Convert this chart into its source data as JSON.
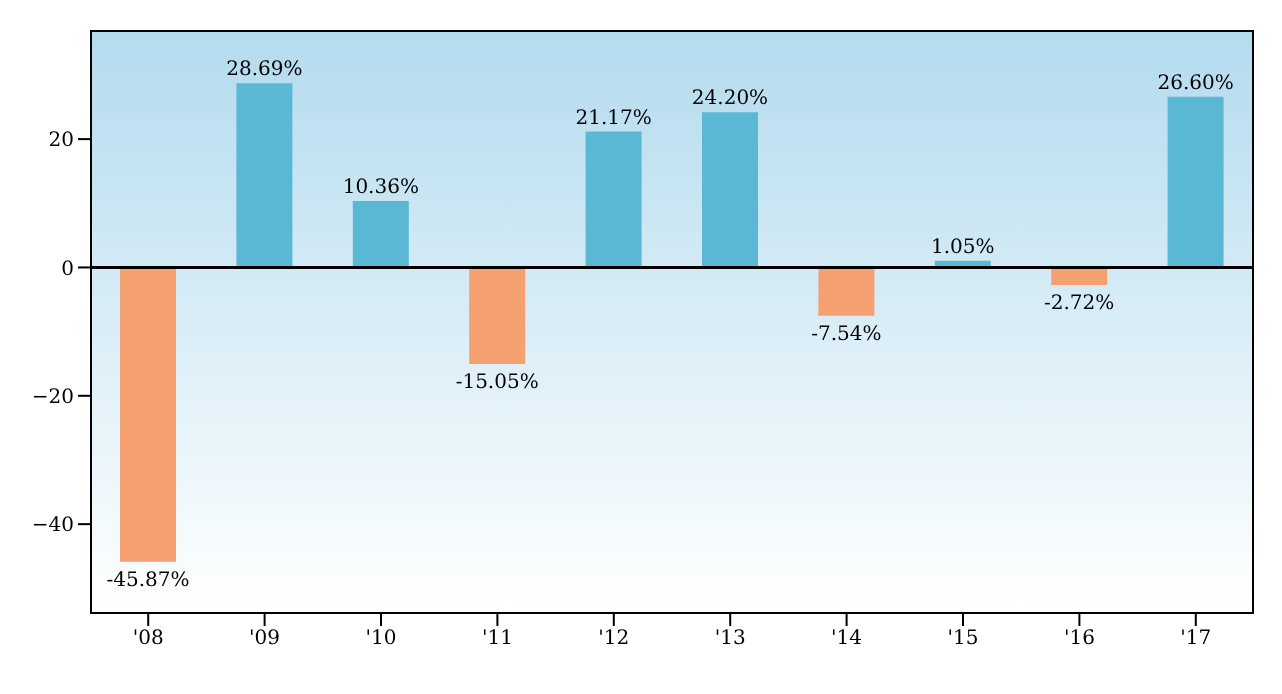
{
  "chart_data": {
    "type": "bar",
    "categories": [
      "'08",
      "'09",
      "'10",
      "'11",
      "'12",
      "'13",
      "'14",
      "'15",
      "'16",
      "'17"
    ],
    "values": [
      -45.87,
      28.69,
      10.36,
      -15.05,
      21.17,
      24.2,
      -7.54,
      1.05,
      -2.72,
      26.6
    ],
    "value_labels": [
      "-45.87%",
      "28.69%",
      "10.36%",
      "-15.05%",
      "21.17%",
      "24.20%",
      "-7.54%",
      "1.05%",
      "-2.72%",
      "26.60%"
    ],
    "colors": [
      "#f4a070",
      "#5bb8d4",
      "#5bb8d4",
      "#f4a070",
      "#5bb8d4",
      "#5bb8d4",
      "#f4a070",
      "#5bb8d4",
      "#f4a070",
      "#5bb8d4"
    ],
    "ylim": [
      -54,
      37
    ],
    "yticks": [
      {
        "value": -40,
        "label": "−40"
      },
      {
        "value": -20,
        "label": "−20"
      },
      0,
      20
    ],
    "ref_lines": [
      {
        "axis": "y",
        "value": 0,
        "color": "#000000"
      }
    ],
    "grid": false,
    "legend": false
  }
}
